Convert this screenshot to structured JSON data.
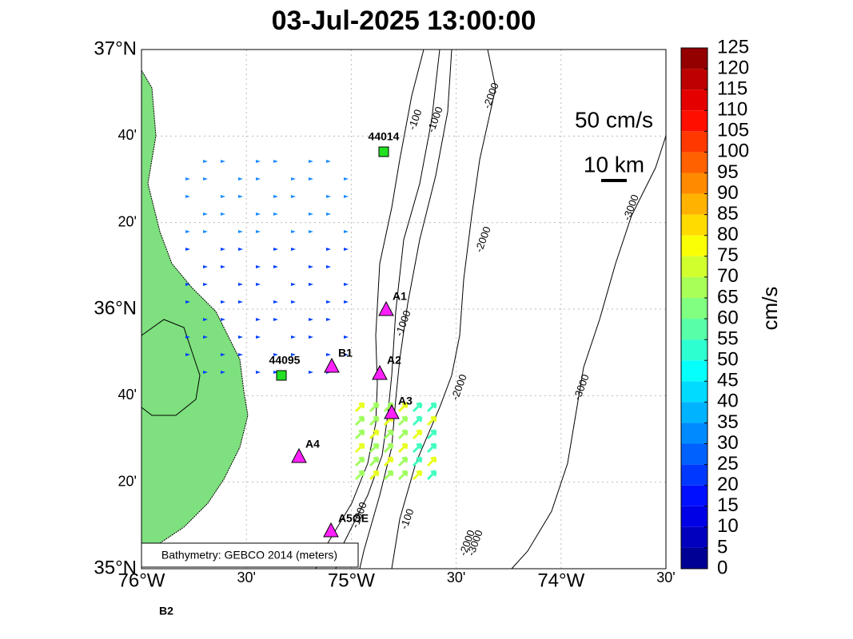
{
  "map": {
    "title": "03-Jul-2025 13:00:00",
    "lat_ticks": [
      {
        "value": 37,
        "label": "37°N"
      },
      {
        "value": 36.6667,
        "label": "40'"
      },
      {
        "value": 36.3333,
        "label": "20'"
      },
      {
        "value": 36,
        "label": "36°N"
      },
      {
        "value": 35.6667,
        "label": "40'"
      },
      {
        "value": 35.3333,
        "label": "20'"
      },
      {
        "value": 35,
        "label": "35°N"
      }
    ],
    "lon_ticks": [
      {
        "value": -76,
        "label": "76°W"
      },
      {
        "value": -75.5,
        "label": "30'"
      },
      {
        "value": -75,
        "label": "75°W"
      },
      {
        "value": -74.5,
        "label": "30'"
      },
      {
        "value": -74,
        "label": "74°W"
      },
      {
        "value": -73.5,
        "label": "30'"
      }
    ],
    "latlim": [
      35,
      37
    ],
    "lonlim": [
      -76,
      -73.5
    ],
    "grid": true,
    "scale_speed": "50 cm/s",
    "scale_distance": "10 km",
    "note": "Bathymetry: GEBCO 2014 (meters)",
    "contour_labels": [
      "-100",
      "-1000",
      "-2000",
      "-3000"
    ],
    "stations": [
      "44014",
      "A1",
      "B1",
      "44095",
      "A2",
      "A3",
      "A4",
      "A5OE",
      "B2"
    ],
    "colorbar": {
      "label": "cm/s",
      "lim": [
        0,
        125
      ],
      "ticks": [
        0,
        5,
        10,
        15,
        20,
        25,
        30,
        35,
        40,
        45,
        50,
        55,
        60,
        65,
        70,
        75,
        80,
        85,
        90,
        95,
        100,
        105,
        110,
        115,
        120,
        125
      ]
    }
  }
}
